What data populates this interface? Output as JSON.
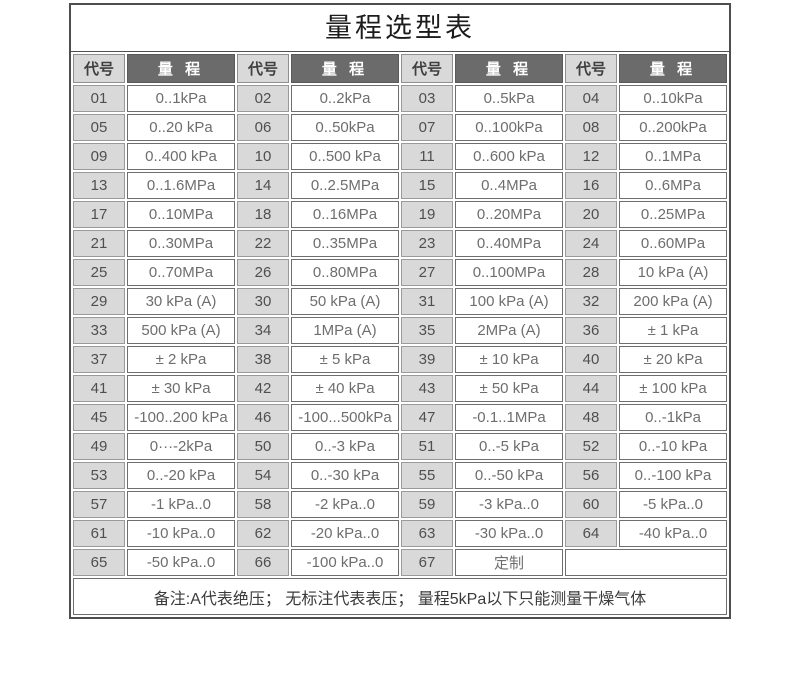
{
  "title": "量程选型表",
  "table": {
    "header": [
      "代号",
      "量 程",
      "代号",
      "量 程",
      "代号",
      "量 程",
      "代号",
      "量 程"
    ],
    "rows": [
      [
        "01",
        "0..1kPa",
        "02",
        "0..2kPa",
        "03",
        "0..5kPa",
        "04",
        "0..10kPa"
      ],
      [
        "05",
        "0..20 kPa",
        "06",
        "0..50kPa",
        "07",
        "0..100kPa",
        "08",
        "0..200kPa"
      ],
      [
        "09",
        "0..400 kPa",
        "10",
        "0..500 kPa",
        "11",
        "0..600 kPa",
        "12",
        "0..1MPa"
      ],
      [
        "13",
        "0..1.6MPa",
        "14",
        "0..2.5MPa",
        "15",
        "0..4MPa",
        "16",
        "0..6MPa"
      ],
      [
        "17",
        "0..10MPa",
        "18",
        "0..16MPa",
        "19",
        "0..20MPa",
        "20",
        "0..25MPa"
      ],
      [
        "21",
        "0..30MPa",
        "22",
        "0..35MPa",
        "23",
        "0..40MPa",
        "24",
        "0..60MPa"
      ],
      [
        "25",
        "0..70MPa",
        "26",
        "0..80MPa",
        "27",
        "0..100MPa",
        "28",
        "10 kPa (A)"
      ],
      [
        "29",
        "30 kPa (A)",
        "30",
        "50 kPa (A)",
        "31",
        "100 kPa (A)",
        "32",
        "200 kPa (A)"
      ],
      [
        "33",
        "500 kPa (A)",
        "34",
        "1MPa (A)",
        "35",
        "2MPa (A)",
        "36",
        "± 1 kPa"
      ],
      [
        "37",
        "± 2 kPa",
        "38",
        "± 5 kPa",
        "39",
        "± 10 kPa",
        "40",
        "± 20 kPa"
      ],
      [
        "41",
        "± 30 kPa",
        "42",
        "± 40 kPa",
        "43",
        "± 50 kPa",
        "44",
        "± 100 kPa"
      ],
      [
        "45",
        "-100..200 kPa",
        "46",
        "-100...500kPa",
        "47",
        "-0.1..1MPa",
        "48",
        "0..-1kPa"
      ],
      [
        "49",
        "0···-2kPa",
        "50",
        "0..-3 kPa",
        "51",
        "0..-5 kPa",
        "52",
        "0..-10 kPa"
      ],
      [
        "53",
        "0..-20 kPa",
        "54",
        "0..-30 kPa",
        "55",
        "0..-50 kPa",
        "56",
        "0..-100 kPa"
      ],
      [
        "57",
        "-1 kPa..0",
        "58",
        "-2 kPa..0",
        "59",
        "-3 kPa..0",
        "60",
        "-5 kPa..0"
      ],
      [
        "61",
        "-10 kPa..0",
        "62",
        "-20 kPa..0",
        "63",
        "-30 kPa..0",
        "64",
        "-40 kPa..0"
      ],
      [
        "65",
        "-50 kPa..0",
        "66",
        "-100 kPa..0",
        "67",
        "定制",
        "",
        ""
      ]
    ]
  },
  "footer_note": "备注:A代表绝压； 无标注代表表压； 量程5kPa以下只能测量干燥气体",
  "colors": {
    "header_dark_bg": "#6b6b6b",
    "header_dark_text": "#ffffff",
    "code_cell_bg": "#d9d9d9",
    "range_text": "#6e6e6e",
    "border": "#6e6e6e",
    "title_text": "#1c1c1c"
  }
}
